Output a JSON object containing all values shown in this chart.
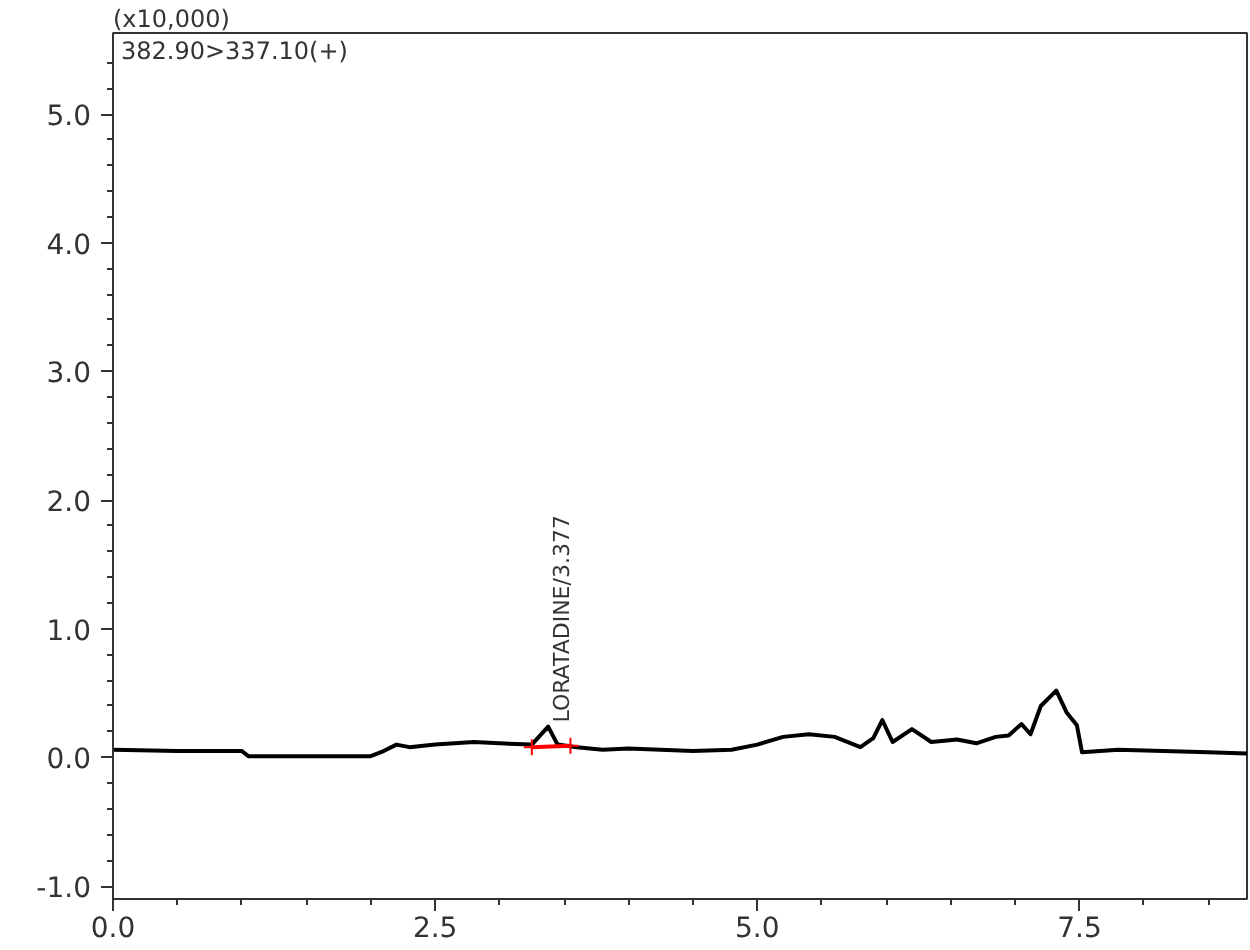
{
  "chart_data": {
    "type": "line",
    "title": "382.90>337.10(+)",
    "ylabel": "(x10,000)",
    "xlim": [
      0,
      8.8
    ],
    "ylim": [
      -1.1,
      5.63
    ],
    "xticks": [
      {
        "value": 0,
        "label": "0.0"
      },
      {
        "value": 0.5,
        "label": null
      },
      {
        "value": 1.0,
        "label": null
      },
      {
        "value": 1.5,
        "label": null
      },
      {
        "value": 2.0,
        "label": null
      },
      2.5,
      {
        "value": 3.0,
        "label": null
      },
      {
        "value": 3.5,
        "label": null
      },
      {
        "value": 4.0,
        "label": null
      },
      {
        "value": 4.5,
        "label": null
      },
      {
        "value": 5,
        "label": "5.0"
      },
      {
        "value": 5.5,
        "label": null
      },
      {
        "value": 6.0,
        "label": null
      },
      {
        "value": 6.5,
        "label": null
      },
      {
        "value": 7.0,
        "label": null
      },
      7.5,
      {
        "value": 8.0,
        "label": null
      },
      {
        "value": 8.5,
        "label": null
      }
    ],
    "yticks": [
      {
        "value": -1,
        "label": "-1.0"
      },
      {
        "value": -0.8,
        "label": null
      },
      {
        "value": -0.6,
        "label": null
      },
      {
        "value": -0.4,
        "label": null
      },
      {
        "value": -0.2,
        "label": null
      },
      {
        "value": 0,
        "label": "0.0"
      },
      {
        "value": 0.2,
        "label": null
      },
      {
        "value": 0.4,
        "label": null
      },
      {
        "value": 0.6,
        "label": null
      },
      {
        "value": 0.8,
        "label": null
      },
      {
        "value": 1,
        "label": "1.0"
      },
      {
        "value": 1.2,
        "label": null
      },
      {
        "value": 1.4,
        "label": null
      },
      {
        "value": 1.6,
        "label": null
      },
      {
        "value": 1.8,
        "label": null
      },
      {
        "value": 2,
        "label": "2.0"
      },
      {
        "value": 2.2,
        "label": null
      },
      {
        "value": 2.4,
        "label": null
      },
      {
        "value": 2.6,
        "label": null
      },
      {
        "value": 2.8,
        "label": null
      },
      {
        "value": 3,
        "label": "3.0"
      },
      {
        "value": 3.2,
        "label": null
      },
      {
        "value": 3.4,
        "label": null
      },
      {
        "value": 3.6,
        "label": null
      },
      {
        "value": 3.8,
        "label": null
      },
      {
        "value": 4,
        "label": "4.0"
      },
      {
        "value": 4.2,
        "label": null
      },
      {
        "value": 4.4,
        "label": null
      },
      {
        "value": 4.6,
        "label": null
      },
      {
        "value": 4.8,
        "label": null
      },
      {
        "value": 5,
        "label": "5.0"
      },
      {
        "value": 5.2,
        "label": null
      },
      {
        "value": 5.4,
        "label": null
      }
    ],
    "grid": false,
    "series": [
      {
        "color": "#000000",
        "x": [
          0,
          0.5,
          1.0,
          1.05,
          1.5,
          2.0,
          2.1,
          2.2,
          2.3,
          2.5,
          2.8,
          3.0,
          3.25,
          3.377,
          3.45,
          3.6,
          3.8,
          4.0,
          4.5,
          4.8,
          5.0,
          5.2,
          5.4,
          5.6,
          5.8,
          5.9,
          5.97,
          6.05,
          6.2,
          6.35,
          6.55,
          6.7,
          6.85,
          6.95,
          7.05,
          7.12,
          7.2,
          7.32,
          7.4,
          7.48,
          7.52,
          7.8,
          8.5,
          8.8
        ],
        "values": [
          0.06,
          0.05,
          0.05,
          0.01,
          0.01,
          0.01,
          0.05,
          0.1,
          0.08,
          0.1,
          0.12,
          0.11,
          0.1,
          0.24,
          0.1,
          0.08,
          0.06,
          0.07,
          0.05,
          0.06,
          0.1,
          0.16,
          0.18,
          0.16,
          0.08,
          0.15,
          0.29,
          0.12,
          0.22,
          0.12,
          0.14,
          0.11,
          0.16,
          0.17,
          0.26,
          0.18,
          0.4,
          0.52,
          0.35,
          0.25,
          0.04,
          0.06,
          0.04,
          0.03
        ],
        "marker": "none"
      },
      {
        "color": "#ff0000",
        "x": [
          3.25,
          3.55
        ],
        "values": [
          0.08,
          0.09
        ],
        "marker": "cross"
      }
    ],
    "annotations": [
      {
        "text": "LORATADINE/3.377",
        "x": 3.377,
        "y": 0.24
      }
    ]
  }
}
